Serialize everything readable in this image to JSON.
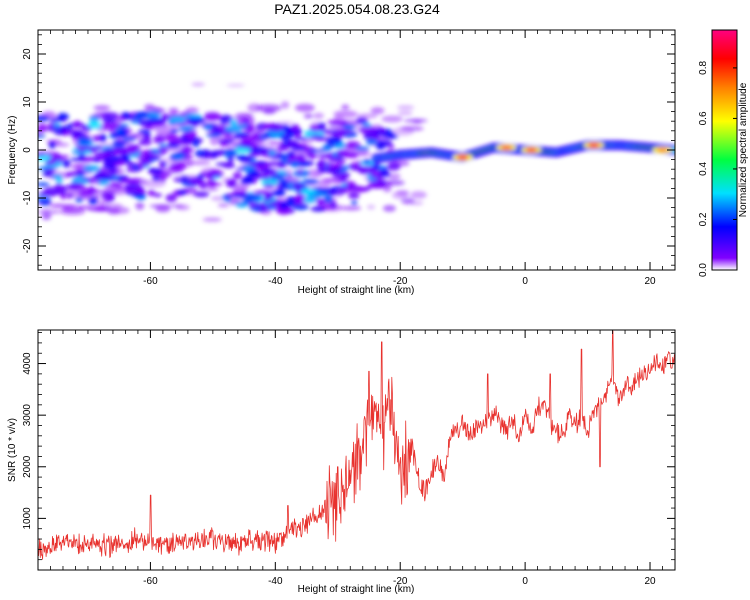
{
  "figure": {
    "title": "PAZ1.2025.054.08.23.G24"
  },
  "chart_data": [
    {
      "type": "heatmap",
      "xlabel": "Height of straight line (km)",
      "ylabel": "Frequency (Hz)",
      "xlim": [
        -78,
        24
      ],
      "ylim": [
        -25,
        25
      ],
      "xticks": [
        -60,
        -40,
        -20,
        0,
        20
      ],
      "yticks": [
        -20,
        -10,
        0,
        10,
        20
      ],
      "grid": false,
      "description": "Spectrogram of normalized spectral amplitude vs height; broad diffuse energy (-10 to +5 Hz) below about -22 km collapsing into a narrow ridge near 0 Hz above -20 km",
      "ridge_center": {
        "x": [
          -78,
          -70,
          -60,
          -50,
          -40,
          -30,
          -25,
          -20,
          -15,
          -10,
          -5,
          0,
          5,
          10,
          15,
          20,
          24
        ],
        "y": [
          -2,
          -2,
          -1,
          -2,
          -4,
          -3,
          -2,
          -1,
          -0.5,
          -1.5,
          0.5,
          0,
          -0.5,
          1,
          1,
          0.5,
          0
        ]
      },
      "peak_amplitude_points": [
        {
          "x": -10,
          "y": -1.5,
          "value": 0.9
        },
        {
          "x": -3,
          "y": 0.5,
          "value": 0.8
        },
        {
          "x": 1,
          "y": 0,
          "value": 0.85
        },
        {
          "x": 11,
          "y": 1,
          "value": 0.9
        },
        {
          "x": 22,
          "y": 0,
          "value": 0.75
        }
      ],
      "colorbar": {
        "label": "Normalized spectral amplitude",
        "range": [
          0,
          0.95
        ],
        "ticks": [
          "0.0",
          "0.2",
          "0.4",
          "0.6",
          "0.8"
        ],
        "colors": [
          "#ffffff",
          "#8000ff",
          "#0000ff",
          "#00e0ff",
          "#00ff40",
          "#ffff00",
          "#ff8000",
          "#ff0000",
          "#ff0080"
        ]
      }
    },
    {
      "type": "line",
      "xlabel": "Height of straight line (km)",
      "ylabel": "SNR (10 * v/v)",
      "xlim": [
        -78,
        24
      ],
      "ylim": [
        0,
        4650
      ],
      "xticks": [
        -60,
        -40,
        -20,
        0,
        20
      ],
      "yticks": [
        1000,
        2000,
        3000,
        4000
      ],
      "grid": false,
      "line_color": "#e8322e",
      "series": [
        {
          "name": "SNR",
          "x": [
            -78,
            -74,
            -70,
            -66,
            -62,
            -58,
            -54,
            -50,
            -46,
            -42,
            -40,
            -38,
            -35,
            -32,
            -30,
            -28,
            -26,
            -25,
            -24,
            -23,
            -22,
            -21,
            -20,
            -19,
            -18,
            -17,
            -16,
            -15,
            -14,
            -13,
            -12,
            -11,
            -10,
            -9,
            -8,
            -7,
            -6,
            -5,
            -4,
            -3,
            -2,
            -1,
            0,
            1,
            2,
            3,
            4,
            5,
            6,
            7,
            8,
            9,
            10,
            11,
            12,
            13,
            14,
            15,
            16,
            17,
            18,
            19,
            20,
            21,
            22,
            23,
            24
          ],
          "y": [
            400,
            550,
            500,
            450,
            600,
            500,
            550,
            600,
            500,
            600,
            500,
            700,
            900,
            1200,
            1400,
            1800,
            2400,
            2800,
            3000,
            2500,
            3200,
            2900,
            1900,
            2100,
            2300,
            1700,
            1500,
            1900,
            2100,
            1800,
            2500,
            2700,
            2900,
            2600,
            2700,
            2900,
            2800,
            3100,
            2800,
            2700,
            2900,
            2600,
            3000,
            2700,
            3100,
            3300,
            2900,
            2700,
            2600,
            3000,
            2800,
            3000,
            2600,
            3100,
            3200,
            3400,
            3800,
            3200,
            3600,
            3500,
            3700,
            3900,
            3800,
            4000,
            3900,
            4100,
            4050
          ],
          "spikes": [
            {
              "x": -23,
              "y": 4420
            },
            {
              "x": -25,
              "y": 3850
            },
            {
              "x": -30,
              "y": 2000
            },
            {
              "x": -38,
              "y": 1250
            },
            {
              "x": -60,
              "y": 1450
            },
            {
              "x": -6,
              "y": 3800
            },
            {
              "x": 4,
              "y": 3800
            },
            {
              "x": 9,
              "y": 4280
            },
            {
              "x": 14,
              "y": 4630
            },
            {
              "x": 12,
              "y": 2000
            }
          ]
        }
      ]
    }
  ]
}
